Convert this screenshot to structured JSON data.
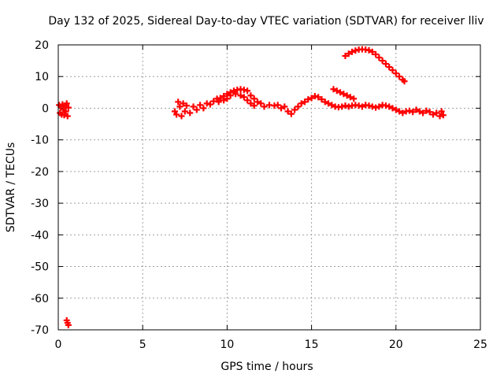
{
  "chart_data": {
    "type": "scatter",
    "title": "Day 132 of 2025, Sidereal Day-to-day VTEC variation (SDTVAR) for receiver lliv",
    "xlabel": "GPS time / hours",
    "ylabel": "SDTVAR / TECUs",
    "xlim": [
      0,
      25
    ],
    "ylim": [
      -70,
      20
    ],
    "xticks": [
      0,
      5,
      10,
      15,
      20,
      25
    ],
    "yticks": [
      -70,
      -60,
      -50,
      -40,
      -30,
      -20,
      -10,
      0,
      10,
      20
    ],
    "grid": true,
    "series": [
      {
        "name": "SDTVAR",
        "color": "#ff0000",
        "marker": "plus",
        "points": [
          [
            0.05,
            1.0
          ],
          [
            0.1,
            -1.5
          ],
          [
            0.15,
            0.5
          ],
          [
            0.2,
            -2.0
          ],
          [
            0.25,
            1.2
          ],
          [
            0.3,
            -0.5
          ],
          [
            0.35,
            -2.2
          ],
          [
            0.4,
            0.8
          ],
          [
            0.45,
            -1.0
          ],
          [
            0.5,
            1.5
          ],
          [
            0.55,
            -2.5
          ],
          [
            0.6,
            0.2
          ],
          [
            0.5,
            -67.0
          ],
          [
            0.55,
            -67.8
          ],
          [
            0.6,
            -68.5
          ],
          [
            6.9,
            -1.0
          ],
          [
            7.0,
            -2.0
          ],
          [
            7.1,
            2.0
          ],
          [
            7.2,
            0.5
          ],
          [
            7.3,
            -2.5
          ],
          [
            7.4,
            1.5
          ],
          [
            7.5,
            -1.0
          ],
          [
            7.6,
            0.8
          ],
          [
            7.8,
            -1.5
          ],
          [
            8.0,
            0.5
          ],
          [
            8.2,
            -0.5
          ],
          [
            8.4,
            1.0
          ],
          [
            8.6,
            0.0
          ],
          [
            8.8,
            1.5
          ],
          [
            9.0,
            1.2
          ],
          [
            9.2,
            2.2
          ],
          [
            9.4,
            3.0
          ],
          [
            9.6,
            3.2
          ],
          [
            9.8,
            3.8
          ],
          [
            10.0,
            4.5
          ],
          [
            10.2,
            5.0
          ],
          [
            10.4,
            5.5
          ],
          [
            10.6,
            5.8
          ],
          [
            10.8,
            6.0
          ],
          [
            11.0,
            5.8
          ],
          [
            11.2,
            5.5
          ],
          [
            11.4,
            4.0
          ],
          [
            11.6,
            3.0
          ],
          [
            11.8,
            2.0
          ],
          [
            12.0,
            1.5
          ],
          [
            9.5,
            2.0
          ],
          [
            9.8,
            2.5
          ],
          [
            10.0,
            3.0
          ],
          [
            10.2,
            4.0
          ],
          [
            10.5,
            4.5
          ],
          [
            10.8,
            4.0
          ],
          [
            11.0,
            3.5
          ],
          [
            11.2,
            2.5
          ],
          [
            11.4,
            1.5
          ],
          [
            11.6,
            0.8
          ],
          [
            12.2,
            0.5
          ],
          [
            12.5,
            1.0
          ],
          [
            12.8,
            0.8
          ],
          [
            13.0,
            1.0
          ],
          [
            13.2,
            0.0
          ],
          [
            13.4,
            0.5
          ],
          [
            13.6,
            -1.0
          ],
          [
            13.8,
            -1.8
          ],
          [
            14.0,
            -0.5
          ],
          [
            14.2,
            0.5
          ],
          [
            14.4,
            1.5
          ],
          [
            14.6,
            2.0
          ],
          [
            14.8,
            2.8
          ],
          [
            15.0,
            3.2
          ],
          [
            15.2,
            3.8
          ],
          [
            15.4,
            3.5
          ],
          [
            15.6,
            2.8
          ],
          [
            15.8,
            2.0
          ],
          [
            16.0,
            1.5
          ],
          [
            16.2,
            1.0
          ],
          [
            16.4,
            0.5
          ],
          [
            16.6,
            0.3
          ],
          [
            16.8,
            0.5
          ],
          [
            17.0,
            0.8
          ],
          [
            17.2,
            0.5
          ],
          [
            17.4,
            0.8
          ],
          [
            17.6,
            1.0
          ],
          [
            17.8,
            0.8
          ],
          [
            18.0,
            0.5
          ],
          [
            18.2,
            1.0
          ],
          [
            18.4,
            0.8
          ],
          [
            18.6,
            0.5
          ],
          [
            18.8,
            0.2
          ],
          [
            19.0,
            0.5
          ],
          [
            19.2,
            1.0
          ],
          [
            19.4,
            0.8
          ],
          [
            19.6,
            0.5
          ],
          [
            19.8,
            0.0
          ],
          [
            20.0,
            -0.5
          ],
          [
            20.2,
            -1.0
          ],
          [
            20.4,
            -1.5
          ],
          [
            20.6,
            -1.0
          ],
          [
            20.8,
            -0.8
          ],
          [
            21.0,
            -1.2
          ],
          [
            21.2,
            -0.5
          ],
          [
            21.4,
            -1.0
          ],
          [
            21.6,
            -1.5
          ],
          [
            21.8,
            -0.8
          ],
          [
            22.0,
            -1.2
          ],
          [
            22.2,
            -2.0
          ],
          [
            22.4,
            -1.5
          ],
          [
            22.6,
            -2.5
          ],
          [
            22.7,
            -1.0
          ],
          [
            22.8,
            -2.2
          ],
          [
            16.3,
            6.0
          ],
          [
            16.5,
            5.5
          ],
          [
            16.7,
            5.0
          ],
          [
            16.9,
            4.5
          ],
          [
            17.1,
            4.0
          ],
          [
            17.3,
            3.5
          ],
          [
            17.5,
            3.0
          ],
          [
            17.0,
            16.5
          ],
          [
            17.2,
            17.2
          ],
          [
            17.4,
            17.8
          ],
          [
            17.6,
            18.2
          ],
          [
            17.8,
            18.5
          ],
          [
            18.0,
            18.6
          ],
          [
            18.2,
            18.5
          ],
          [
            18.4,
            18.3
          ],
          [
            18.6,
            17.8
          ],
          [
            18.8,
            17.0
          ],
          [
            19.0,
            16.0
          ],
          [
            19.2,
            15.0
          ],
          [
            19.4,
            14.0
          ],
          [
            19.6,
            13.0
          ],
          [
            19.8,
            12.0
          ],
          [
            20.0,
            11.0
          ],
          [
            20.2,
            10.0
          ],
          [
            20.4,
            9.0
          ],
          [
            20.5,
            8.5
          ]
        ]
      }
    ]
  }
}
